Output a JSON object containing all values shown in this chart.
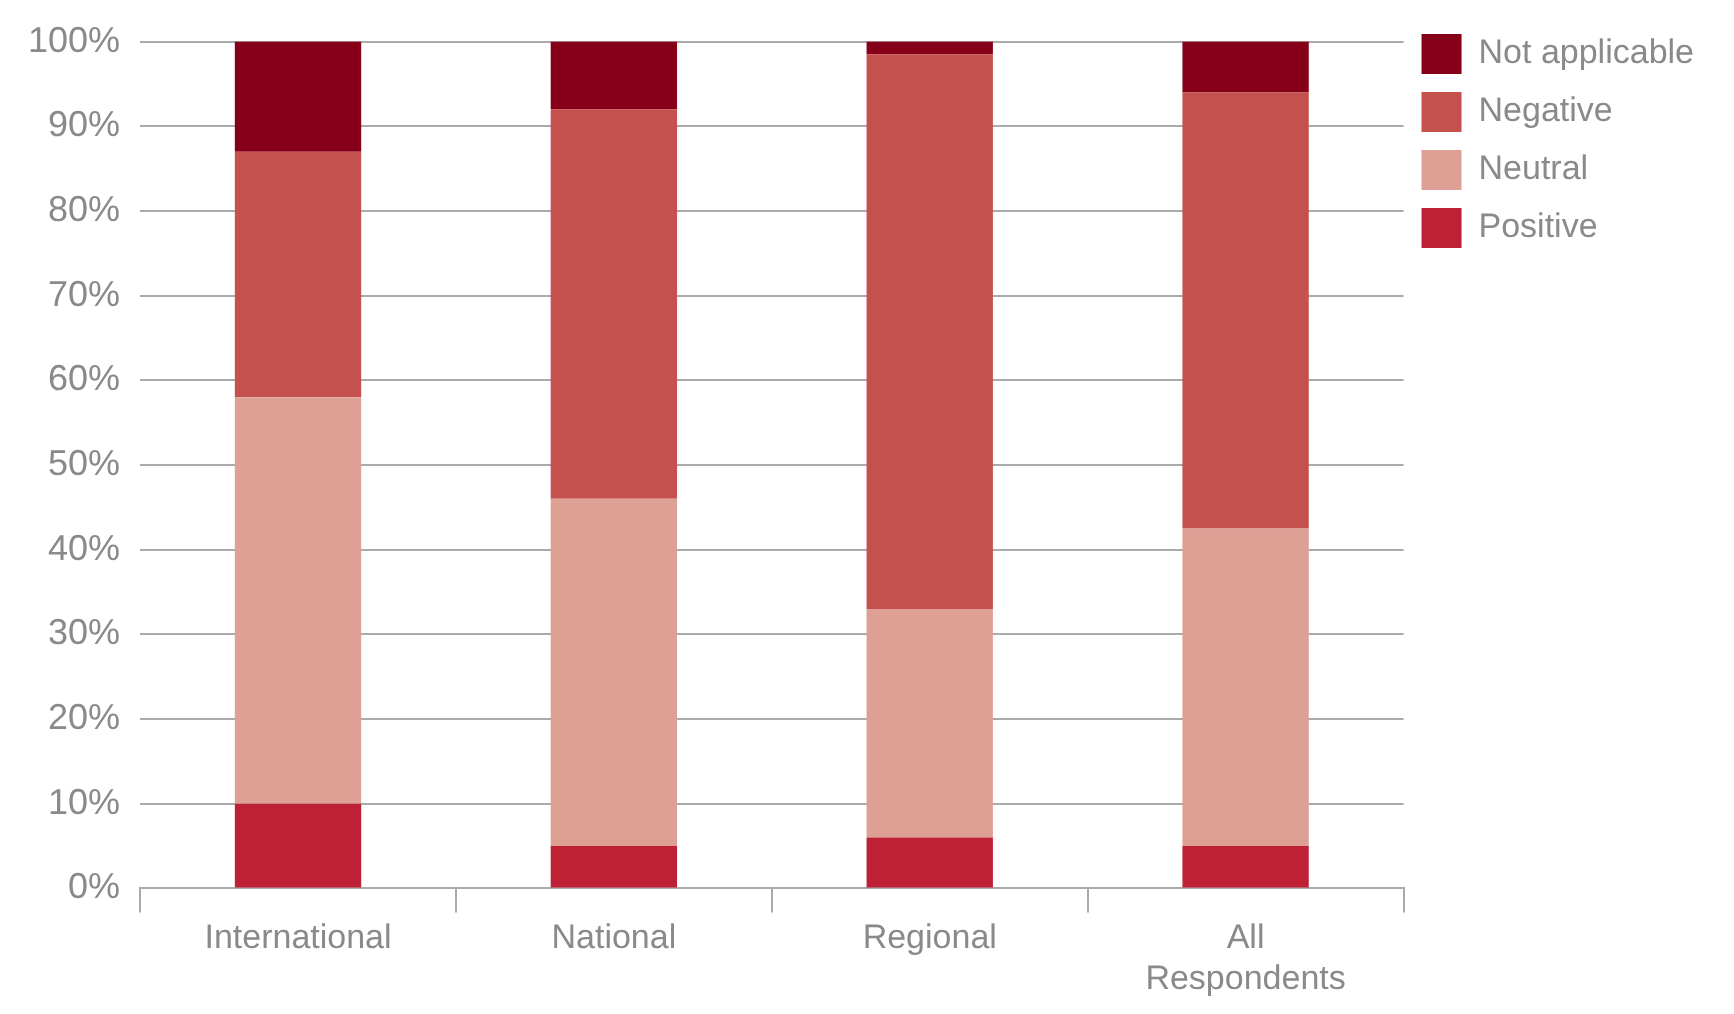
{
  "chart_data": {
    "type": "bar",
    "stacked": true,
    "categories": [
      "International",
      "National",
      "Regional",
      "All Respondents"
    ],
    "series": [
      {
        "name": "Positive",
        "color": "#be2035",
        "values": [
          10,
          5,
          6,
          5
        ]
      },
      {
        "name": "Neutral",
        "color": "#dea095",
        "values": [
          48,
          41,
          27,
          37.5
        ]
      },
      {
        "name": "Negative",
        "color": "#c4514d",
        "values": [
          29,
          46,
          65.5,
          51.5
        ]
      },
      {
        "name": "Not applicable",
        "color": "#850018",
        "values": [
          13,
          8,
          1.5,
          6
        ]
      }
    ],
    "ylim": [
      0,
      100
    ],
    "yticks": [
      {
        "value": 0,
        "label": "0%"
      },
      {
        "value": 10,
        "label": "10%"
      },
      {
        "value": 20,
        "label": "20%"
      },
      {
        "value": 30,
        "label": "30%"
      },
      {
        "value": 40,
        "label": "40%"
      },
      {
        "value": 50,
        "label": "50%"
      },
      {
        "value": 60,
        "label": "60%"
      },
      {
        "value": 70,
        "label": "70%"
      },
      {
        "value": 80,
        "label": "80%"
      },
      {
        "value": 90,
        "label": "90%"
      },
      {
        "value": 100,
        "label": "100%"
      }
    ],
    "grid": "y",
    "legend": "top right"
  }
}
